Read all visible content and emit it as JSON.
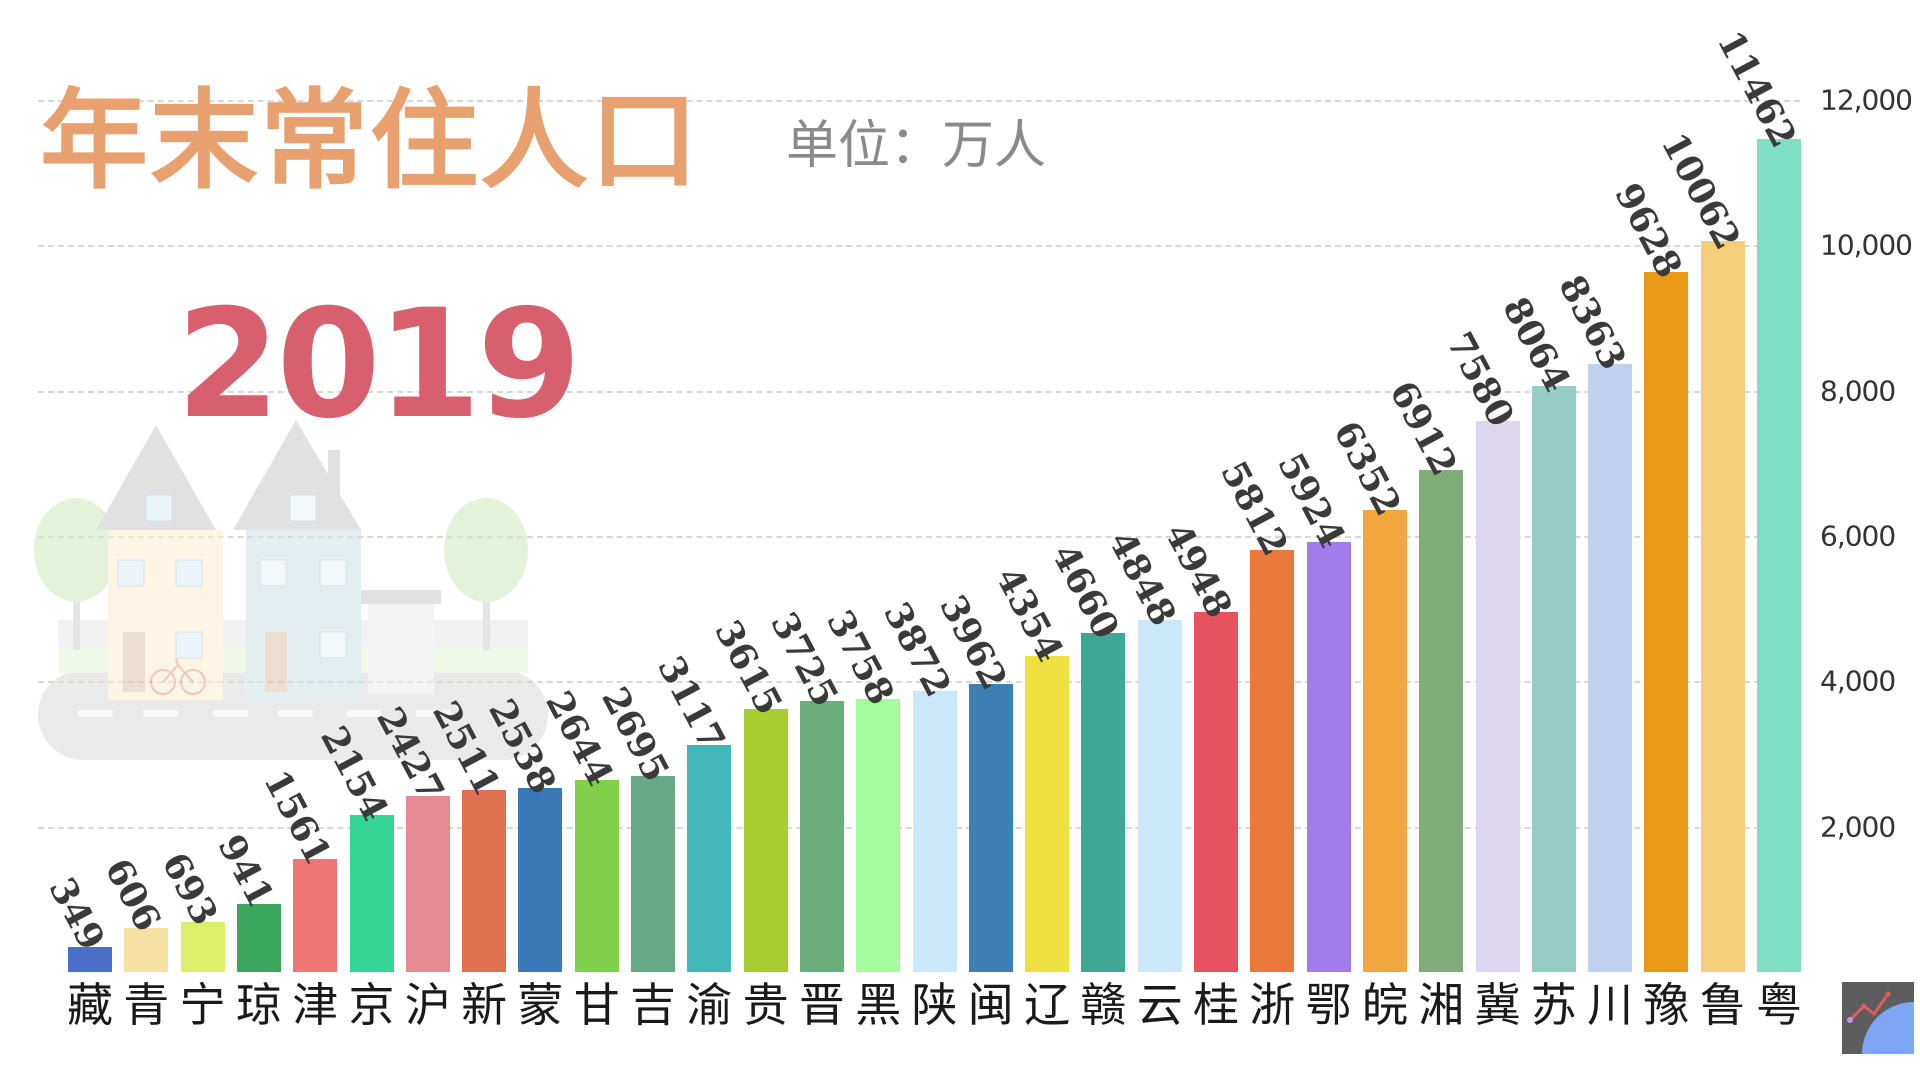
{
  "header": {
    "title": "年末常住人口",
    "unit": "单位：万人",
    "year": "2019"
  },
  "colors": {
    "title": "#e8a06e",
    "unit": "#8a8a8a",
    "year": "#d8606e",
    "value_label": "#3a3a3a",
    "gridline": "#d8d8d8"
  },
  "y_axis": {
    "ticks": [
      {
        "value": 2000,
        "label": "2,000"
      },
      {
        "value": 4000,
        "label": "4,000"
      },
      {
        "value": 6000,
        "label": "6,000"
      },
      {
        "value": 8000,
        "label": "8,000"
      },
      {
        "value": 10000,
        "label": "10,000"
      },
      {
        "value": 12000,
        "label": "12,000"
      }
    ]
  },
  "chart_data": {
    "type": "bar",
    "title": "年末常住人口",
    "subtitle": "单位：万人",
    "annotation": "2019",
    "xlabel": "",
    "ylabel": "万人",
    "ylim": [
      0,
      12000
    ],
    "grid": true,
    "y_axis_position": "right",
    "categories": [
      "藏",
      "青",
      "宁",
      "琼",
      "津",
      "京",
      "沪",
      "新",
      "蒙",
      "甘",
      "吉",
      "渝",
      "贵",
      "晋",
      "黑",
      "陕",
      "闽",
      "辽",
      "赣",
      "云",
      "桂",
      "浙",
      "鄂",
      "皖",
      "湘",
      "冀",
      "苏",
      "川",
      "豫",
      "鲁",
      "粤"
    ],
    "values": [
      349,
      606,
      693,
      941,
      1561,
      2154,
      2427,
      2511,
      2538,
      2644,
      2695,
      3117,
      3615,
      3725,
      3758,
      3872,
      3962,
      4354,
      4660,
      4848,
      4948,
      5812,
      5924,
      6352,
      6912,
      7580,
      8064,
      8363,
      9628,
      10062,
      11462
    ],
    "bar_colors": [
      "#4a6fc9",
      "#f7e0a3",
      "#ddee6a",
      "#3aa65e",
      "#ee7675",
      "#35d595",
      "#e58a92",
      "#df7050",
      "#3a78b7",
      "#80d04c",
      "#67a886",
      "#43b8bb",
      "#a8cd2f",
      "#6aad7b",
      "#a5fb9f",
      "#cbe8fa",
      "#3e7fb3",
      "#efe042",
      "#3fa794",
      "#cbe8fa",
      "#e8515f",
      "#e8793b",
      "#a07dea",
      "#f1a73d",
      "#7fac78",
      "#ddd6ee",
      "#95ccc6",
      "#bed1ee",
      "#e99b17",
      "#f6cd7b",
      "#7fdfc4"
    ]
  },
  "logo": {
    "icon": "trend-chart-logo-icon",
    "bg": "#5d5d5f",
    "accent": "#7fa6f5",
    "line": "#e35a5a"
  }
}
